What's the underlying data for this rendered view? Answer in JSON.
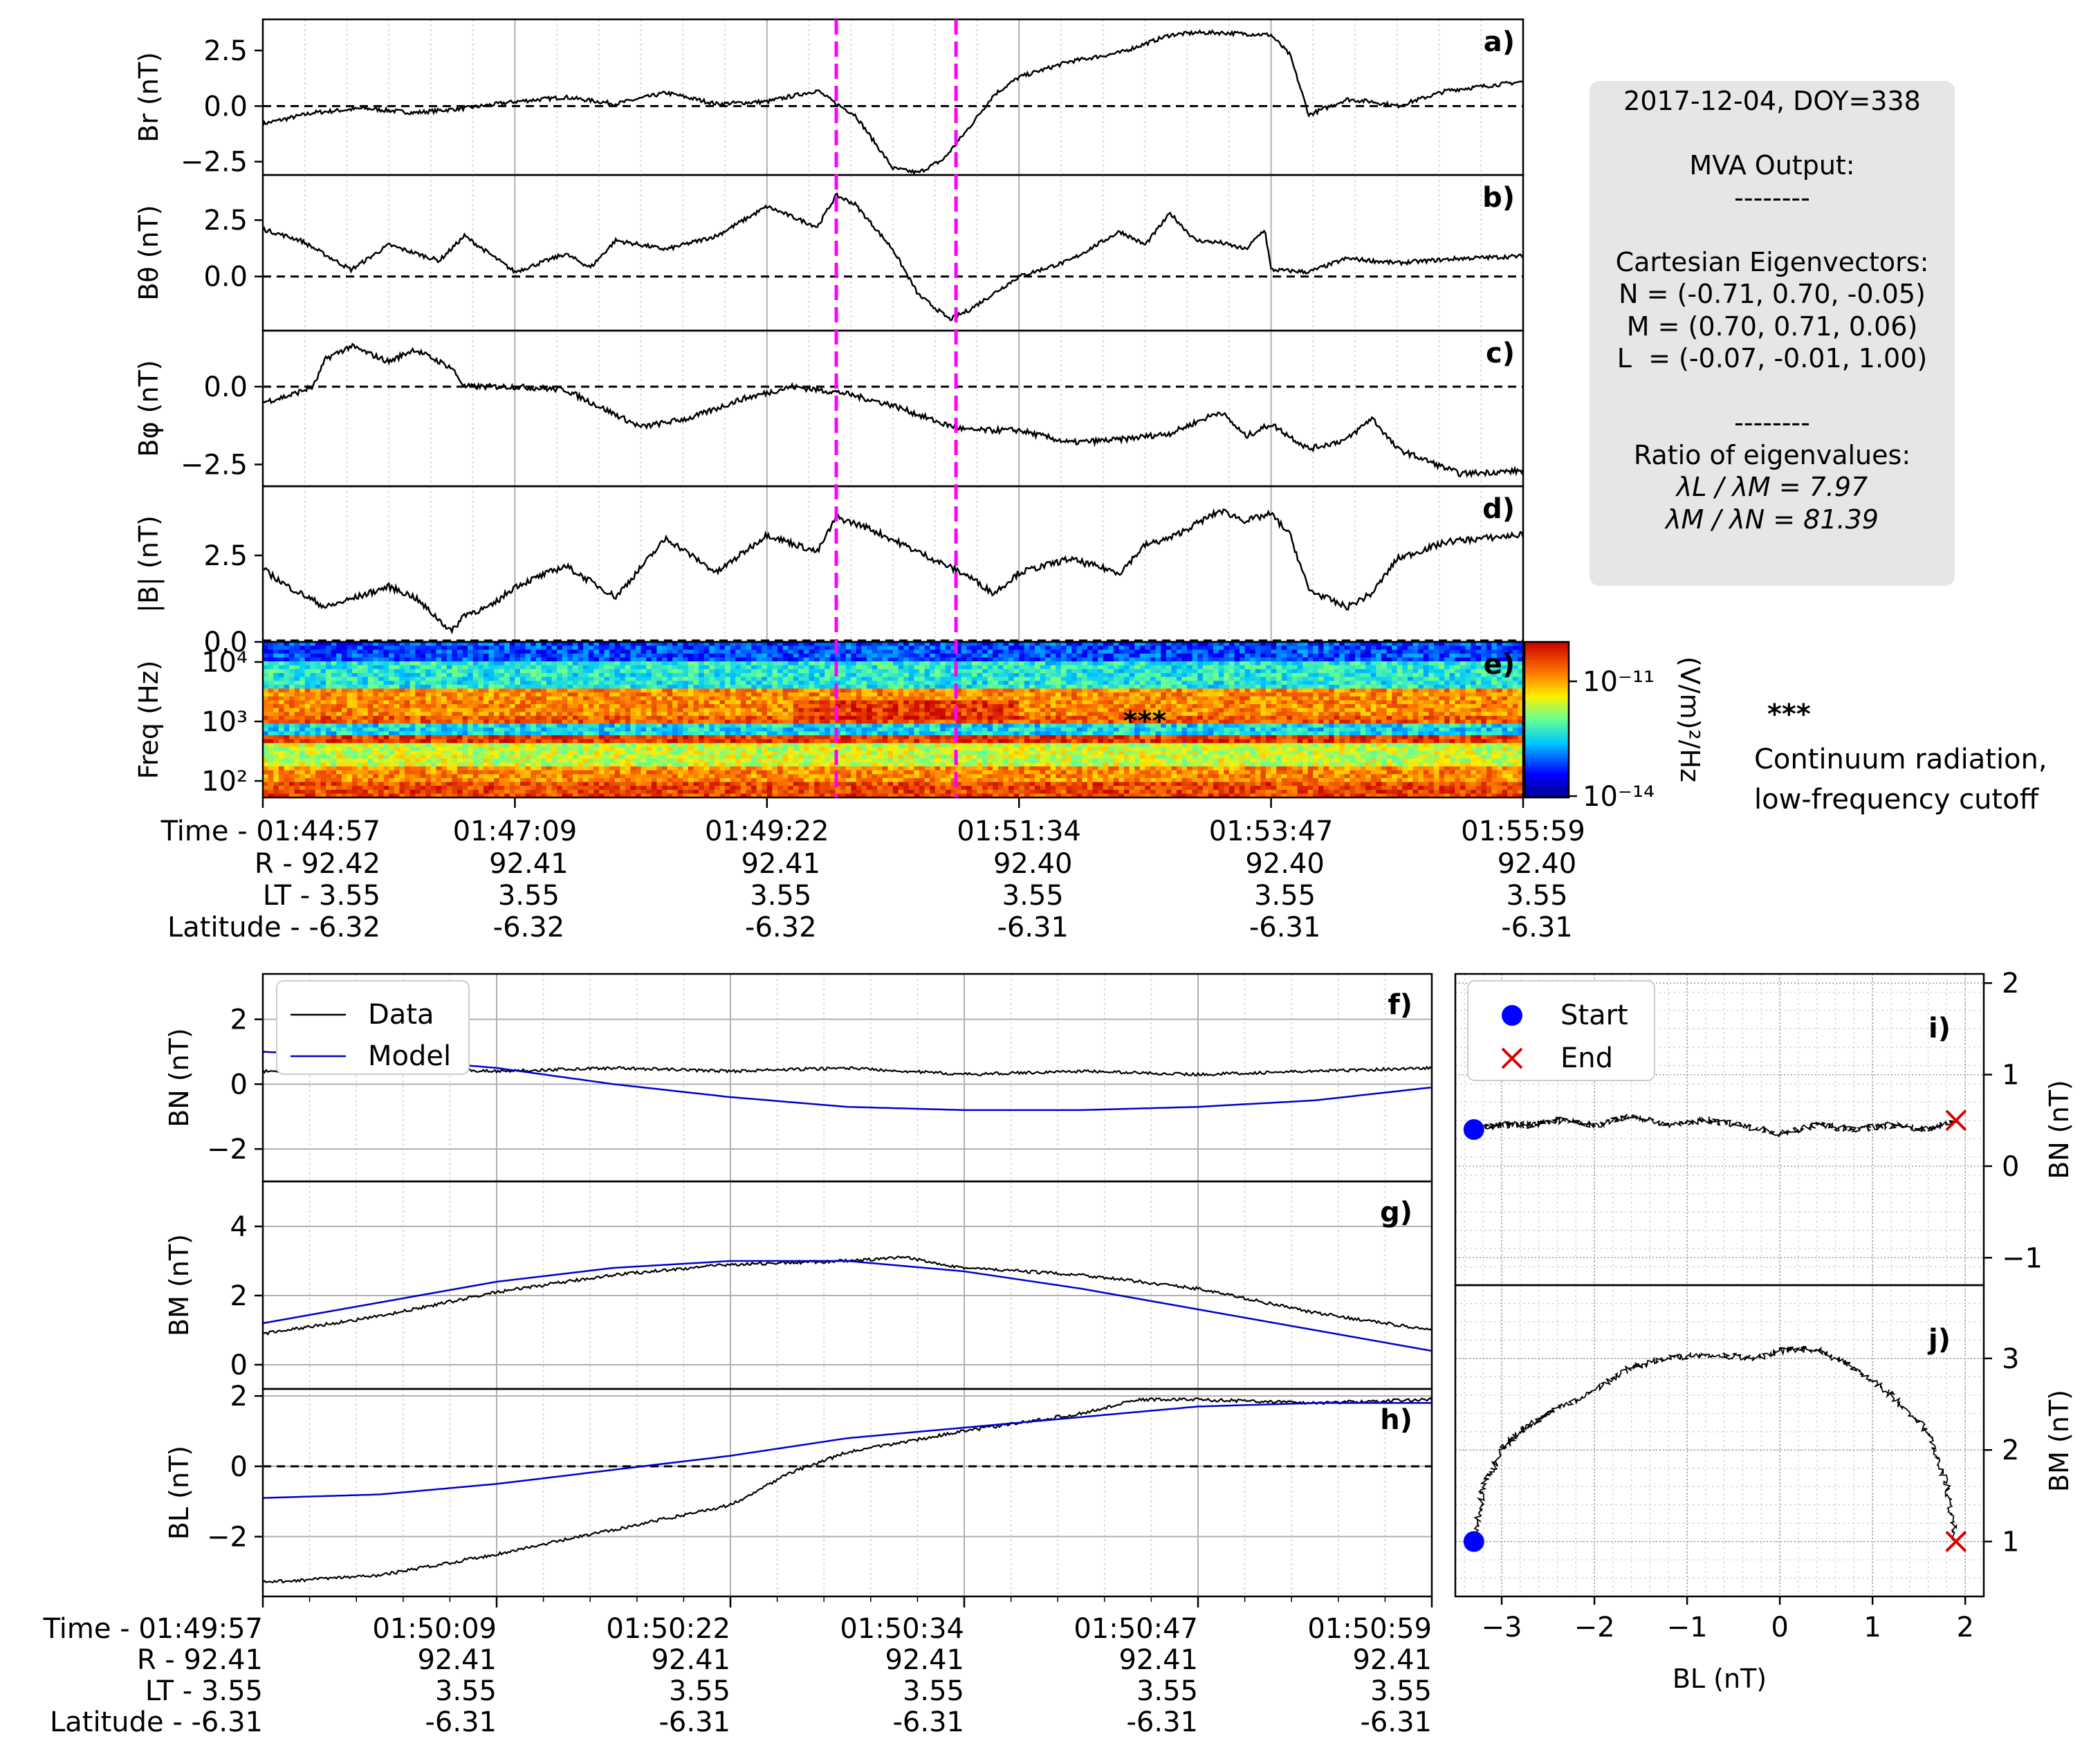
{
  "colors": {
    "data": "#000000",
    "model": "#0000cc",
    "event_line": "#ff00ff",
    "start": "#0000ff",
    "end": "#dd0000",
    "panel_bg": "#e6e6e6"
  },
  "info_box": {
    "date_line": "2017-12-04, DOY=338",
    "header": "MVA Output:",
    "sep1": "--------",
    "eig_title": "Cartesian Eigenvectors:",
    "n_vec": "N = (-0.71, 0.70, -0.05)",
    "m_vec": "M = (0.70, 0.71, 0.06)",
    "l_vec": "L  = (-0.07, -0.01, 1.00)",
    "sep2": "--------",
    "ratio_title": "Ratio of eigenvalues:",
    "ratio1": "λL / λM = 7.97",
    "ratio2": "λM / λN = 81.39"
  },
  "annotation": {
    "stars": "***",
    "line1": "Continuum radiation,",
    "line2": "low-frequency cutoff"
  },
  "chart_data": [
    {
      "id": "a",
      "type": "line",
      "panel_label": "a)",
      "ylabel": "Br (nT)",
      "yticks": [
        "2.5",
        "0.0",
        "−2.5"
      ],
      "ylim": [
        -3.1,
        3.9
      ],
      "x": [
        0,
        0.04,
        0.08,
        0.12,
        0.16,
        0.2,
        0.24,
        0.28,
        0.32,
        0.36,
        0.4,
        0.44,
        0.455,
        0.47,
        0.49,
        0.5,
        0.52,
        0.54,
        0.56,
        0.58,
        0.6,
        0.64,
        0.68,
        0.72,
        0.74,
        0.76,
        0.8,
        0.815,
        0.83,
        0.86,
        0.88,
        0.9,
        0.94,
        0.97,
        1.0
      ],
      "y": [
        -0.8,
        -0.3,
        -0.1,
        -0.3,
        -0.1,
        0.2,
        0.4,
        0.1,
        0.6,
        0.1,
        0.2,
        0.7,
        0.1,
        -0.4,
        -2.0,
        -2.8,
        -3.0,
        -2.4,
        -1.0,
        0.5,
        1.3,
        2.0,
        2.4,
        3.2,
        3.3,
        3.3,
        3.2,
        2.3,
        -0.4,
        0.3,
        0.2,
        0.0,
        0.7,
        0.9,
        1.1
      ]
    },
    {
      "id": "b",
      "type": "line",
      "panel_label": "b)",
      "ylabel": "Bθ (nT)",
      "yticks": [
        "2.5",
        "0.0"
      ],
      "ylim": [
        -2.4,
        4.5
      ],
      "x": [
        0,
        0.03,
        0.07,
        0.1,
        0.14,
        0.16,
        0.2,
        0.24,
        0.26,
        0.28,
        0.32,
        0.36,
        0.4,
        0.44,
        0.455,
        0.47,
        0.5,
        0.52,
        0.545,
        0.56,
        0.6,
        0.64,
        0.68,
        0.7,
        0.72,
        0.74,
        0.76,
        0.78,
        0.795,
        0.8,
        0.83,
        0.86,
        0.9,
        0.95,
        1.0
      ],
      "y": [
        2.1,
        1.6,
        0.3,
        1.4,
        0.7,
        1.8,
        0.2,
        1.0,
        0.4,
        1.6,
        1.2,
        1.8,
        3.1,
        2.2,
        3.6,
        3.2,
        1.2,
        -0.8,
        -1.9,
        -1.5,
        0.0,
        0.7,
        2.0,
        1.4,
        2.8,
        1.6,
        1.5,
        1.2,
        2.1,
        0.3,
        0.2,
        0.8,
        0.6,
        0.8,
        0.9
      ]
    },
    {
      "id": "c",
      "type": "line",
      "panel_label": "c)",
      "ylabel": "Bφ (nT)",
      "yticks": [
        "0.0",
        "−2.5"
      ],
      "ylim": [
        -3.2,
        1.8
      ],
      "x": [
        0,
        0.02,
        0.04,
        0.05,
        0.07,
        0.1,
        0.12,
        0.15,
        0.16,
        0.2,
        0.24,
        0.28,
        0.3,
        0.34,
        0.38,
        0.42,
        0.46,
        0.5,
        0.54,
        0.56,
        0.6,
        0.64,
        0.68,
        0.72,
        0.76,
        0.78,
        0.8,
        0.83,
        0.86,
        0.88,
        0.9,
        0.95,
        1.0
      ],
      "y": [
        -0.5,
        -0.3,
        0.0,
        0.9,
        1.3,
        0.8,
        1.2,
        0.6,
        0.0,
        0.0,
        -0.1,
        -0.9,
        -1.3,
        -1.0,
        -0.4,
        0.0,
        -0.2,
        -0.6,
        -1.2,
        -1.4,
        -1.4,
        -1.8,
        -1.7,
        -1.5,
        -0.8,
        -1.6,
        -1.2,
        -2.0,
        -1.7,
        -1.0,
        -2.0,
        -2.8,
        -2.7
      ]
    },
    {
      "id": "d",
      "type": "line",
      "panel_label": "d)",
      "ylabel": "|B| (nT)",
      "yticks": [
        "2.5",
        "0.0"
      ],
      "ylim": [
        0.0,
        4.5
      ],
      "x": [
        0,
        0.02,
        0.05,
        0.1,
        0.12,
        0.15,
        0.16,
        0.18,
        0.2,
        0.24,
        0.28,
        0.32,
        0.36,
        0.4,
        0.44,
        0.455,
        0.48,
        0.52,
        0.56,
        0.58,
        0.6,
        0.64,
        0.68,
        0.7,
        0.72,
        0.76,
        0.78,
        0.8,
        0.815,
        0.83,
        0.86,
        0.88,
        0.9,
        0.94,
        0.97,
        1.0
      ],
      "y": [
        2.1,
        1.6,
        1.0,
        1.6,
        1.3,
        0.3,
        0.8,
        1.0,
        1.6,
        2.2,
        1.3,
        3.0,
        2.0,
        3.1,
        2.6,
        3.6,
        3.3,
        2.6,
        1.9,
        1.4,
        2.0,
        2.4,
        2.0,
        2.8,
        3.0,
        3.8,
        3.5,
        3.7,
        3.1,
        1.5,
        1.0,
        1.4,
        2.4,
        2.9,
        3.0,
        3.1
      ]
    },
    {
      "id": "e",
      "type": "heatmap",
      "panel_label": "e)",
      "ylabel": "Freq (Hz)",
      "yticks": [
        "10⁴",
        "10³",
        "10²"
      ],
      "colorbar_label": "(V/m)²/Hz",
      "colorbar_ticks": [
        "10⁻¹¹",
        "10⁻¹⁴"
      ],
      "stars": "***"
    },
    {
      "id": "axis_top",
      "type": "table",
      "rows": [
        [
          "Time - 01:44:57",
          "01:47:09",
          "01:49:22",
          "01:51:34",
          "01:53:47",
          "01:55:59"
        ],
        [
          "R  -   92.42",
          "92.41",
          "92.41",
          "92.40",
          "92.40",
          "92.40"
        ],
        [
          "LT -    3.55",
          "3.55",
          "3.55",
          "3.55",
          "3.55",
          "3.55"
        ],
        [
          "Latitude -   -6.32",
          "-6.32",
          "-6.32",
          "-6.31",
          "-6.31",
          "-6.31"
        ]
      ],
      "event_lines_x": [
        0.455,
        0.55
      ]
    },
    {
      "id": "f",
      "type": "line",
      "panel_label": "f)",
      "ylabel": "BN (nT)",
      "yticks": [
        "2",
        "0",
        "−2"
      ],
      "ylim": [
        -3.0,
        3.4
      ],
      "legend": [
        "Data",
        "Model"
      ],
      "series": [
        {
          "name": "Data",
          "x": [
            0,
            0.1,
            0.2,
            0.3,
            0.4,
            0.5,
            0.6,
            0.7,
            0.8,
            0.9,
            1.0
          ],
          "y": [
            0.4,
            0.5,
            0.4,
            0.5,
            0.4,
            0.5,
            0.3,
            0.4,
            0.3,
            0.4,
            0.5
          ]
        },
        {
          "name": "Model",
          "x": [
            0,
            0.1,
            0.2,
            0.3,
            0.4,
            0.5,
            0.6,
            0.7,
            0.8,
            0.9,
            1.0
          ],
          "y": [
            1.0,
            0.8,
            0.5,
            0.0,
            -0.4,
            -0.7,
            -0.8,
            -0.8,
            -0.7,
            -0.5,
            -0.1
          ]
        }
      ]
    },
    {
      "id": "g",
      "type": "line",
      "panel_label": "g)",
      "ylabel": "BM (nT)",
      "yticks": [
        "4",
        "2",
        "0"
      ],
      "ylim": [
        -0.7,
        5.3
      ],
      "series": [
        {
          "name": "Data",
          "x": [
            0,
            0.1,
            0.2,
            0.3,
            0.4,
            0.5,
            0.55,
            0.6,
            0.7,
            0.8,
            0.9,
            1.0
          ],
          "y": [
            0.9,
            1.4,
            2.1,
            2.6,
            2.9,
            3.0,
            3.1,
            2.8,
            2.6,
            2.2,
            1.5,
            1.0
          ]
        },
        {
          "name": "Model",
          "x": [
            0,
            0.1,
            0.2,
            0.3,
            0.4,
            0.5,
            0.6,
            0.7,
            0.8,
            0.9,
            1.0
          ],
          "y": [
            1.2,
            1.8,
            2.4,
            2.8,
            3.0,
            3.0,
            2.7,
            2.2,
            1.6,
            1.0,
            0.4
          ]
        }
      ]
    },
    {
      "id": "h",
      "type": "line",
      "panel_label": "h)",
      "ylabel": "BL (nT)",
      "yticks": [
        "2",
        "0",
        "−2"
      ],
      "ylim": [
        -3.7,
        2.2
      ],
      "series": [
        {
          "name": "Data",
          "x": [
            0,
            0.1,
            0.2,
            0.3,
            0.4,
            0.45,
            0.5,
            0.6,
            0.7,
            0.75,
            0.8,
            0.9,
            1.0
          ],
          "y": [
            -3.3,
            -3.1,
            -2.5,
            -1.8,
            -1.1,
            -0.2,
            0.4,
            1.0,
            1.5,
            1.9,
            1.9,
            1.8,
            1.9
          ]
        },
        {
          "name": "Model",
          "x": [
            0,
            0.1,
            0.2,
            0.3,
            0.4,
            0.5,
            0.6,
            0.7,
            0.8,
            0.9,
            1.0
          ],
          "y": [
            -0.9,
            -0.8,
            -0.5,
            -0.1,
            0.3,
            0.8,
            1.1,
            1.4,
            1.7,
            1.8,
            1.8
          ]
        }
      ]
    },
    {
      "id": "axis_bottom",
      "type": "table",
      "rows": [
        [
          "Time - 01:49:57",
          "01:50:09",
          "01:50:22",
          "01:50:34",
          "01:50:47",
          "01:50:59"
        ],
        [
          "R  -   92.41",
          "92.41",
          "92.41",
          "92.41",
          "92.41",
          "92.41"
        ],
        [
          "LT -    3.55",
          "3.55",
          "3.55",
          "3.55",
          "3.55",
          "3.55"
        ],
        [
          "Latitude -   -6.31",
          "-6.31",
          "-6.31",
          "-6.31",
          "-6.31",
          "-6.31"
        ]
      ]
    },
    {
      "id": "i",
      "type": "scatter",
      "panel_label": "i)",
      "xlabel": "",
      "ylabel": "BN (nT)",
      "xlim": [
        -3.5,
        2.2
      ],
      "ylim": [
        -1.3,
        2.1
      ],
      "yticks": [
        "2",
        "1",
        "0",
        "−1"
      ],
      "legend": [
        "Start",
        "End"
      ],
      "x": [
        -3.3,
        -3.0,
        -2.7,
        -2.4,
        -2.0,
        -1.6,
        -1.2,
        -0.8,
        -0.4,
        0.0,
        0.4,
        0.8,
        1.2,
        1.6,
        1.9
      ],
      "y": [
        0.4,
        0.45,
        0.45,
        0.5,
        0.45,
        0.55,
        0.45,
        0.5,
        0.45,
        0.35,
        0.45,
        0.4,
        0.45,
        0.4,
        0.5
      ],
      "start": [
        -3.3,
        0.4
      ],
      "end": [
        1.9,
        0.5
      ]
    },
    {
      "id": "j",
      "type": "scatter",
      "panel_label": "j)",
      "xlabel": "BL (nT)",
      "ylabel": "BM (nT)",
      "xlim": [
        -3.5,
        2.2
      ],
      "ylim": [
        0.4,
        3.8
      ],
      "xticks": [
        "−3",
        "−2",
        "−1",
        "0",
        "1",
        "2"
      ],
      "yticks": [
        "3",
        "2",
        "1"
      ],
      "x": [
        -3.3,
        -3.2,
        -3.0,
        -2.8,
        -2.5,
        -2.1,
        -1.6,
        -1.2,
        -0.8,
        -0.3,
        0.1,
        0.4,
        0.8,
        1.2,
        1.6,
        1.8,
        1.9
      ],
      "y": [
        1.0,
        1.6,
        2.0,
        2.2,
        2.4,
        2.6,
        2.9,
        3.0,
        3.05,
        3.0,
        3.1,
        3.1,
        2.9,
        2.6,
        2.2,
        1.6,
        1.0
      ],
      "start": [
        -3.3,
        1.0
      ],
      "end": [
        1.9,
        1.0
      ]
    }
  ]
}
